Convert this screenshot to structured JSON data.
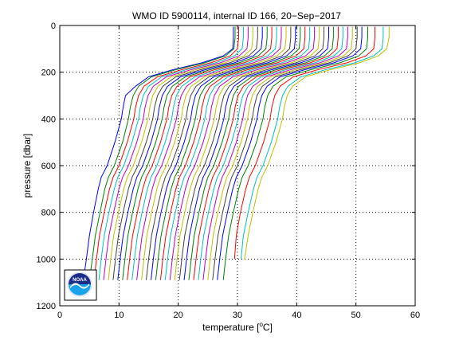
{
  "chart_data": {
    "type": "line",
    "title": "WMO ID 5900114, internal ID 166, 20−Sep−2017",
    "xlabel_prefix": "temperature [",
    "xlabel_degree": "o",
    "xlabel_suffix": "C]",
    "ylabel": "pressure [dbar]",
    "xlim": [
      0,
      60
    ],
    "ylim": [
      1200,
      0
    ],
    "y_reversed": true,
    "x_ticks": [
      "0",
      "10",
      "20",
      "30",
      "40",
      "50",
      "60"
    ],
    "y_ticks": [
      "0",
      "200",
      "400",
      "600",
      "800",
      "1000",
      "1200"
    ],
    "grid": true,
    "waterfall_offset_per_profile": 1,
    "profile_pressure": [
      5,
      50,
      100,
      130,
      160,
      190,
      220,
      260,
      300,
      350,
      400,
      500,
      600,
      650,
      700,
      800,
      900,
      1000,
      1090
    ],
    "series": [
      {
        "x": [
          29.3,
          29.3,
          29.2,
          27.6,
          24.0,
          19.0,
          15.0,
          12.8,
          11.1,
          10.7,
          10.4,
          9.3,
          8.0,
          7.0,
          6.5,
          5.7,
          5.0,
          4.5,
          4.0
        ],
        "color": "#0000ff"
      },
      {
        "x": [
          29.6,
          29.6,
          29.4,
          28.0,
          24.5,
          19.5,
          15.5,
          13.3,
          12.4,
          11.9,
          11.6,
          10.6,
          9.2,
          8.2,
          7.6,
          6.8,
          6.0,
          5.5,
          5.0
        ],
        "color": "#008000"
      },
      {
        "x": [
          30.2,
          30.2,
          30.0,
          28.8,
          25.5,
          20.5,
          16.5,
          14.2,
          13.3,
          12.8,
          12.5,
          11.4,
          10.0,
          9.0,
          8.4,
          7.5,
          6.7,
          6.2,
          5.8
        ],
        "color": "#ff0000"
      },
      {
        "x": [
          31.0,
          31.0,
          30.8,
          29.5,
          26.3,
          21.3,
          17.2,
          15.0,
          14.1,
          13.6,
          13.3,
          12.2,
          10.8,
          9.8,
          9.2,
          8.3,
          7.5,
          7.0,
          6.6
        ],
        "color": "#00bfbf"
      },
      {
        "x": [
          31.8,
          31.8,
          31.6,
          30.3,
          27.1,
          22.1,
          18.0,
          15.8,
          14.9,
          14.4,
          14.1,
          13.0,
          11.6,
          10.6,
          10.0,
          9.1,
          8.3,
          7.8,
          7.4
        ],
        "color": "#bf00bf"
      },
      {
        "x": [
          32.6,
          32.6,
          32.4,
          31.1,
          27.9,
          22.9,
          18.8,
          16.6,
          15.7,
          15.2,
          14.9,
          13.8,
          12.4,
          11.4,
          10.8,
          9.9,
          9.1,
          8.6,
          8.2
        ],
        "color": "#bfbf00"
      },
      {
        "x": [
          33.4,
          33.4,
          33.2,
          31.9,
          28.7,
          23.7,
          19.6,
          17.4,
          16.5,
          16.0,
          15.7,
          14.6,
          13.2,
          12.2,
          11.6,
          10.7,
          9.9,
          9.4,
          9.0
        ],
        "color": "#404040"
      },
      {
        "x": [
          34.2,
          34.2,
          34.0,
          32.7,
          29.5,
          24.5,
          20.4,
          18.2,
          17.3,
          16.8,
          16.5,
          15.4,
          14.0,
          13.0,
          12.4,
          11.5,
          10.7,
          10.2,
          9.8
        ],
        "color": "#0000ff"
      },
      {
        "x": [
          35.0,
          35.0,
          34.8,
          33.5,
          30.3,
          25.3,
          21.2,
          19.0,
          18.1,
          17.6,
          17.3,
          16.2,
          14.8,
          13.8,
          13.2,
          12.3,
          11.5,
          11.0,
          10.6
        ],
        "color": "#008000"
      },
      {
        "x": [
          35.8,
          35.8,
          35.6,
          34.3,
          31.1,
          26.1,
          22.0,
          19.8,
          18.9,
          18.4,
          18.1,
          17.0,
          15.6,
          14.6,
          14.0,
          13.1,
          12.3,
          11.8,
          11.4
        ],
        "color": "#ff0000"
      },
      {
        "x": [
          36.6,
          36.6,
          36.4,
          35.1,
          31.9,
          26.9,
          22.8,
          20.6,
          19.7,
          19.2,
          18.9,
          17.8,
          16.4,
          15.4,
          14.8,
          13.9,
          13.1,
          12.6,
          12.2
        ],
        "color": "#00bfbf"
      },
      {
        "x": [
          37.4,
          37.4,
          37.2,
          35.9,
          32.7,
          27.7,
          23.6,
          21.4,
          20.5,
          20.0,
          19.7,
          18.6,
          17.2,
          16.2,
          15.6,
          14.7,
          13.9,
          13.4,
          13.0
        ],
        "color": "#bf00bf"
      },
      {
        "x": [
          38.2,
          38.2,
          38.0,
          36.7,
          33.5,
          28.5,
          24.4,
          22.2,
          21.3,
          20.8,
          20.5,
          19.4,
          18.0,
          17.0,
          16.4,
          15.5,
          14.7,
          14.2,
          13.8
        ],
        "color": "#bfbf00"
      },
      {
        "x": [
          39.0,
          39.0,
          38.8,
          37.5,
          34.3,
          29.3,
          25.2,
          23.0,
          22.1,
          21.6,
          21.3,
          20.2,
          18.8,
          17.8,
          17.2,
          16.3,
          15.5,
          15.0,
          14.6
        ],
        "color": "#404040"
      },
      {
        "x": [
          39.8,
          39.8,
          39.6,
          38.3,
          35.1,
          30.1,
          26.0,
          23.8,
          22.9,
          22.4,
          22.1,
          21.0,
          19.6,
          18.6,
          18.0,
          17.1,
          16.3,
          15.8,
          15.4
        ],
        "color": "#0000ff"
      },
      {
        "x": [
          40.6,
          40.6,
          40.4,
          39.1,
          35.9,
          30.9,
          26.8,
          24.6,
          23.7,
          23.2,
          22.9,
          21.8,
          20.4,
          19.4,
          18.8,
          17.9,
          17.1,
          16.6,
          16.2
        ],
        "color": "#008000"
      },
      {
        "x": [
          41.4,
          41.4,
          41.2,
          39.9,
          36.7,
          31.7,
          27.6,
          25.4,
          24.5,
          24.0,
          23.7,
          22.6,
          21.2,
          20.2,
          19.6,
          18.7,
          17.9,
          17.4,
          17.0
        ],
        "color": "#ff0000"
      },
      {
        "x": [
          42.2,
          42.2,
          42.0,
          40.7,
          37.5,
          32.5,
          28.4,
          26.2,
          25.3,
          24.8,
          24.5,
          23.4,
          22.0,
          21.0,
          20.4,
          19.5,
          18.7,
          18.2,
          17.8
        ],
        "color": "#00bfbf"
      },
      {
        "x": [
          43.0,
          43.0,
          42.8,
          41.5,
          38.3,
          33.3,
          29.2,
          27.0,
          26.1,
          25.6,
          25.3,
          24.2,
          22.8,
          21.8,
          21.2,
          20.3,
          19.5,
          19.0,
          18.6
        ],
        "color": "#bf00bf"
      },
      {
        "x": [
          43.8,
          43.8,
          43.6,
          42.3,
          39.1,
          34.1,
          30.0,
          27.8,
          26.9,
          26.4,
          26.1,
          25.0,
          23.6,
          22.6,
          22.0,
          21.1,
          20.3,
          19.8,
          19.4
        ],
        "color": "#bfbf00"
      },
      {
        "x": [
          44.6,
          44.6,
          44.4,
          43.1,
          39.9,
          34.9,
          30.8,
          28.6,
          27.7,
          27.2,
          26.9,
          25.8,
          24.4,
          23.4,
          22.8,
          21.9,
          21.1,
          20.6,
          20.2
        ],
        "color": "#404040"
      },
      {
        "x": [
          45.4,
          45.4,
          45.2,
          43.9,
          40.7,
          35.7,
          31.6,
          29.4,
          28.5,
          28.0,
          27.7,
          26.6,
          25.2,
          24.2,
          23.6,
          22.7,
          21.9,
          21.4,
          21.0
        ],
        "color": "#0000ff"
      },
      {
        "x": [
          46.2,
          46.2,
          46.0,
          44.7,
          41.5,
          36.5,
          32.4,
          30.2,
          29.3,
          28.8,
          28.5,
          27.4,
          26.0,
          25.0,
          24.4,
          23.5,
          22.7,
          22.2,
          21.8
        ],
        "color": "#008000"
      },
      {
        "x": [
          47.0,
          47.0,
          46.8,
          45.5,
          42.3,
          37.3,
          33.2,
          31.0,
          30.1,
          29.6,
          29.3,
          28.2,
          26.8,
          25.8,
          25.2,
          24.3,
          23.5,
          23.0,
          22.6
        ],
        "color": "#ff0000"
      },
      {
        "x": [
          47.8,
          47.8,
          47.6,
          46.3,
          43.1,
          38.1,
          34.0,
          31.8,
          30.9,
          30.4,
          30.1,
          29.0,
          27.6,
          26.6,
          26.0,
          25.1,
          24.3,
          23.8,
          23.4
        ],
        "color": "#00bfbf"
      },
      {
        "x": [
          48.6,
          48.6,
          48.4,
          47.1,
          43.9,
          38.9,
          34.8,
          32.6,
          31.7,
          31.2,
          30.9,
          29.8,
          28.4,
          27.4,
          26.8,
          25.9,
          25.1,
          24.6,
          24.2
        ],
        "color": "#bf00bf"
      },
      {
        "x": [
          49.4,
          49.4,
          49.2,
          47.9,
          44.7,
          39.7,
          35.6,
          33.4,
          32.5,
          32.0,
          31.7,
          30.6,
          29.2,
          28.2,
          27.6,
          26.7,
          25.9,
          25.4,
          25.0
        ],
        "color": "#bfbf00"
      },
      {
        "x": [
          50.2,
          50.2,
          50.0,
          48.7,
          45.5,
          40.5,
          36.4,
          34.2,
          33.3,
          32.8,
          32.5,
          31.4,
          30.0,
          29.0,
          28.4,
          27.5,
          26.7,
          26.2,
          25.8
        ],
        "color": "#404040"
      },
      {
        "x": [
          51.0,
          51.0,
          50.8,
          49.5,
          46.3,
          41.3,
          37.2,
          35.0,
          34.1,
          33.6,
          33.3,
          32.2,
          30.8,
          29.8,
          29.2,
          28.3,
          27.5,
          27.0,
          26.6
        ],
        "color": "#0000ff"
      },
      {
        "x": [
          52.0,
          52.0,
          51.8,
          50.5,
          47.3,
          42.3,
          38.2,
          36.0,
          35.1,
          34.6,
          34.3,
          33.2,
          31.8,
          30.8,
          30.2,
          29.3,
          28.5,
          28.0,
          27.6
        ],
        "color": "#008000"
      },
      {
        "x": [
          53.2,
          53.2,
          53.0,
          51.7,
          48.5,
          43.5,
          39.4,
          37.2,
          36.3,
          35.8,
          35.5,
          34.4,
          33.0,
          32.0,
          31.4,
          30.5,
          29.8,
          29.5
        ],
        "color": "#ff0000"
      },
      {
        "x": [
          54.6,
          54.6,
          54.4,
          53.0,
          49.8,
          44.8,
          40.7,
          38.5,
          37.6,
          37.1,
          36.8,
          35.7,
          34.3,
          33.3,
          32.7,
          31.8,
          31.0,
          30.6
        ],
        "color": "#00bfbf"
      },
      {
        "x": [
          55.6,
          55.6,
          55.2,
          53.8,
          50.6,
          45.6,
          41.5,
          39.3,
          38.4,
          37.9,
          37.6,
          36.5,
          35.1,
          34.1,
          33.5,
          32.6,
          31.8,
          31.2
        ],
        "color": "#bfbf00"
      }
    ],
    "logo": {
      "label": "NOAA",
      "colors": {
        "top": "#1b2d8a",
        "bottom": "#1aa3e8",
        "ring": "#ffffff"
      }
    }
  }
}
